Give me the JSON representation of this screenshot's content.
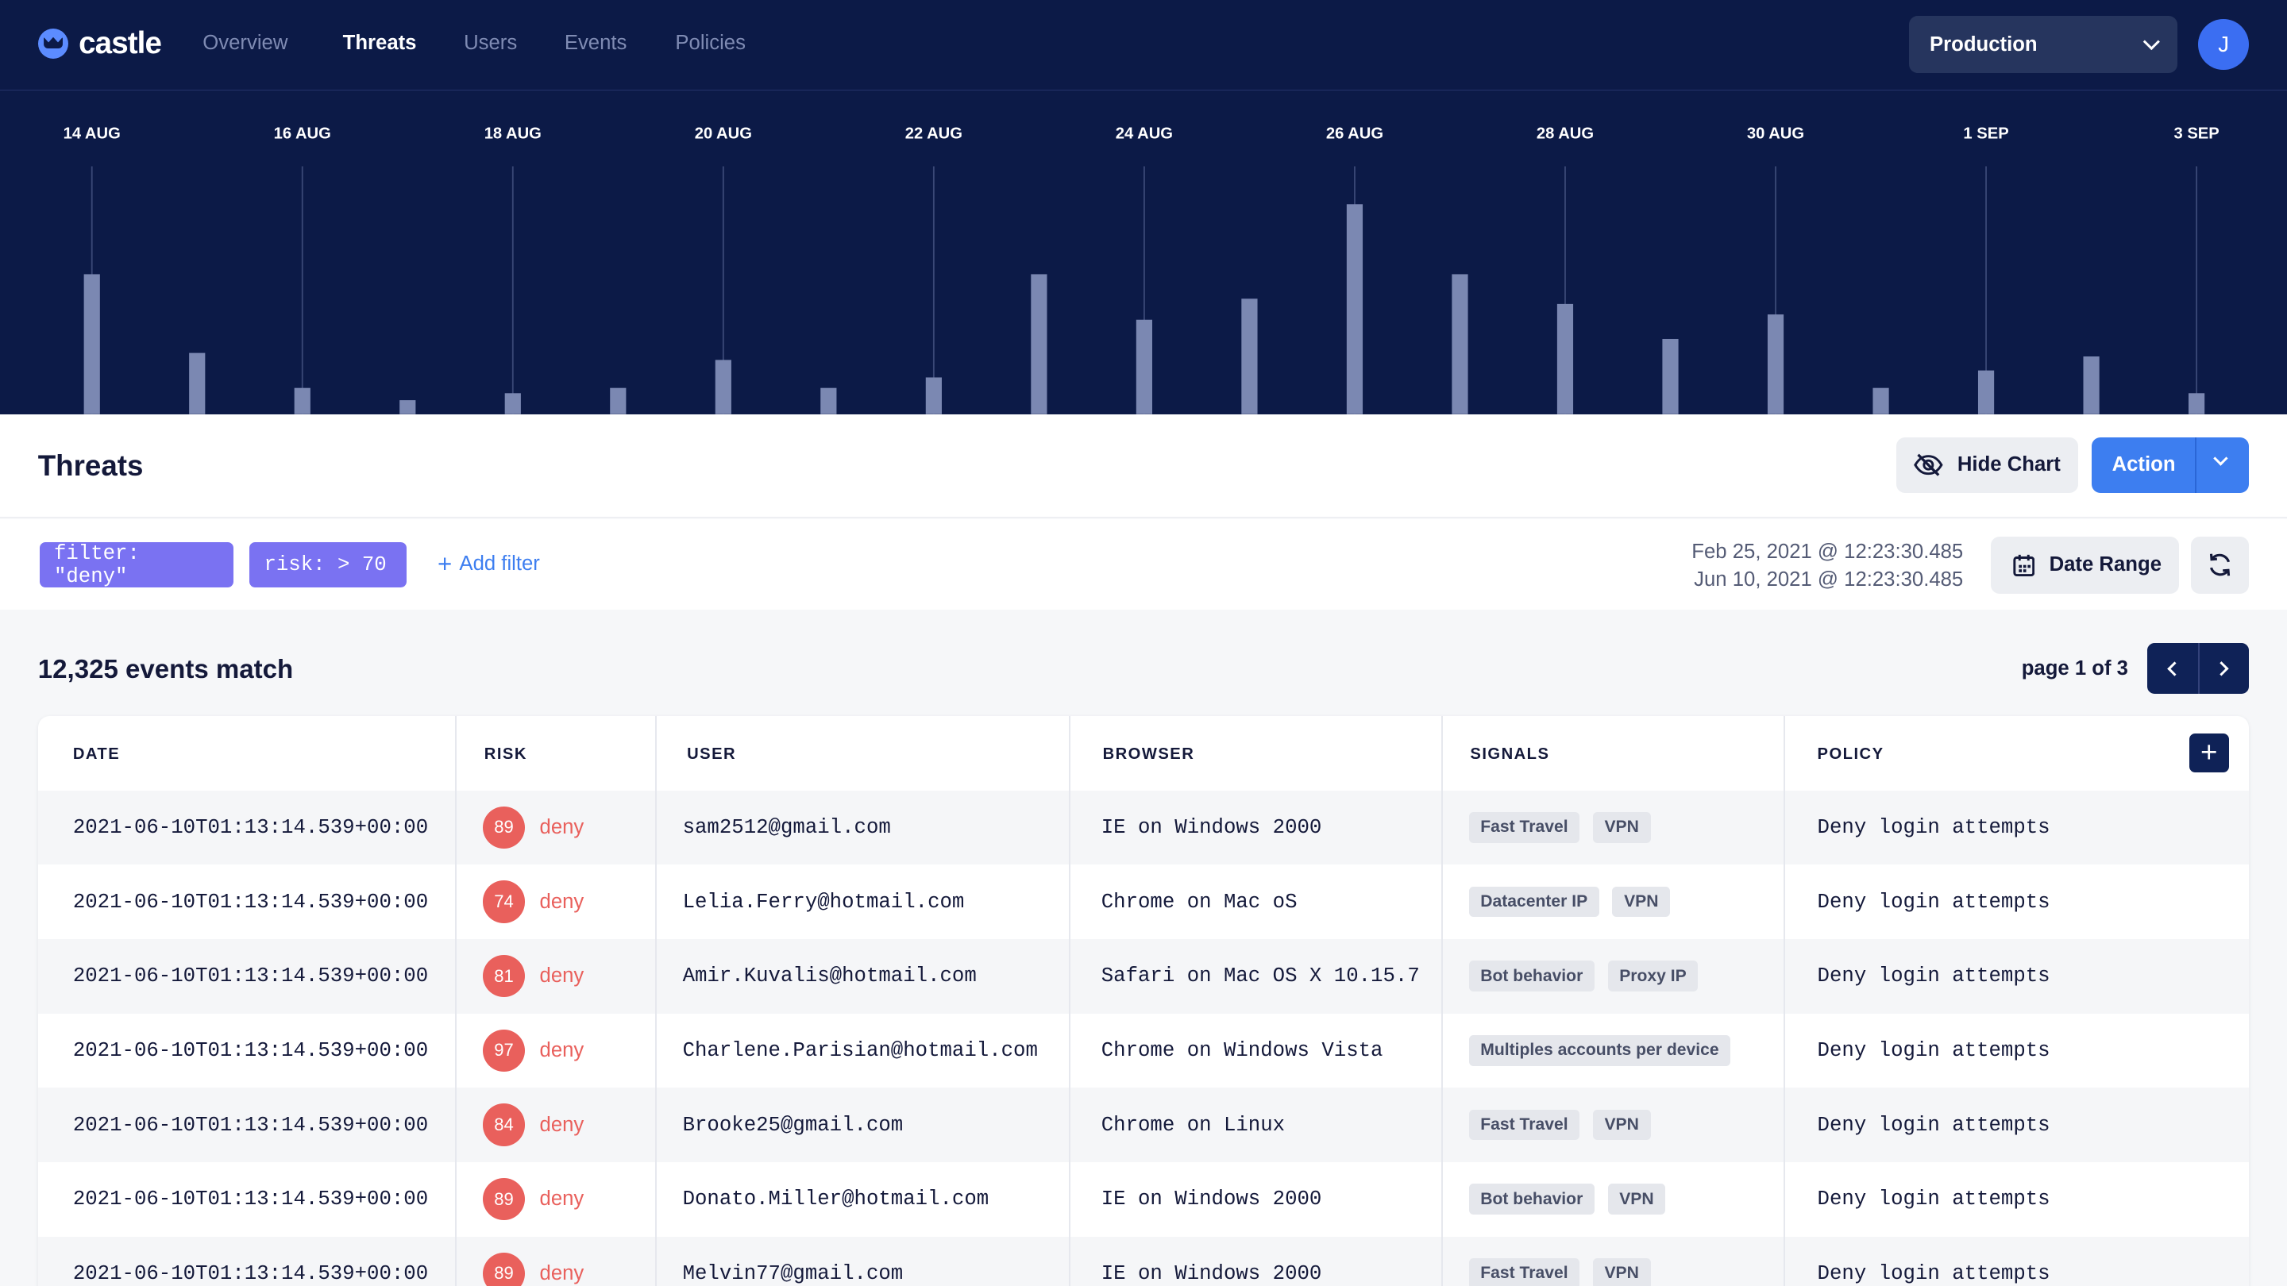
{
  "nav": {
    "logo": "castle",
    "links": [
      {
        "label": "Overview",
        "active": false
      },
      {
        "label": "Threats",
        "active": true
      },
      {
        "label": "Users",
        "active": false
      },
      {
        "label": "Events",
        "active": false
      },
      {
        "label": "Policies",
        "active": false
      }
    ],
    "environment": "Production",
    "avatar_initial": "J"
  },
  "chart_data": {
    "type": "bar",
    "tick_labels": [
      "14 AUG",
      "16 AUG",
      "18 AUG",
      "20 AUG",
      "22 AUG",
      "24 AUG",
      "26 AUG",
      "28 AUG",
      "30 AUG",
      "1 SEP",
      "3 SEP"
    ],
    "values": [
      80,
      35,
      15,
      8,
      12,
      15,
      31,
      15,
      21,
      80,
      54,
      66,
      120,
      80,
      63,
      43,
      57,
      15,
      25,
      33,
      12
    ],
    "ylim": [
      0,
      120
    ],
    "bar_color": "#7b88b2",
    "background": "#0c1a47"
  },
  "header": {
    "title": "Threats",
    "hide_chart_label": "Hide Chart",
    "action_label": "Action"
  },
  "filters": {
    "chips": [
      "filter: \"deny\"",
      "risk: > 70"
    ],
    "add_filter_label": "Add filter",
    "date_from": "Feb 25, 2021 @ 12:23:30.485",
    "date_to": "Jun 10, 2021 @ 12:23:30.485",
    "date_range_label": "Date Range"
  },
  "results": {
    "count_text": "12,325 events match",
    "page_text": "page 1 of 3"
  },
  "table": {
    "columns": [
      "DATE",
      "RISK",
      "USER",
      "BROWSER",
      "SIGNALS",
      "POLICY"
    ],
    "rows": [
      {
        "date": "2021-06-10T01:13:14.539+00:00",
        "risk": "89",
        "verdict": "deny",
        "user": "sam2512@gmail.com",
        "browser": "IE on Windows 2000",
        "signals": [
          "Fast Travel",
          "VPN"
        ],
        "policy": "Deny login attempts"
      },
      {
        "date": "2021-06-10T01:13:14.539+00:00",
        "risk": "74",
        "verdict": "deny",
        "user": "Lelia.Ferry@hotmail.com",
        "browser": "Chrome on Mac oS",
        "signals": [
          "Datacenter IP",
          "VPN"
        ],
        "policy": "Deny login attempts"
      },
      {
        "date": "2021-06-10T01:13:14.539+00:00",
        "risk": "81",
        "verdict": "deny",
        "user": "Amir.Kuvalis@hotmail.com",
        "browser": "Safari on Mac OS X 10.15.7",
        "signals": [
          "Bot behavior",
          "Proxy IP"
        ],
        "policy": "Deny login attempts"
      },
      {
        "date": "2021-06-10T01:13:14.539+00:00",
        "risk": "97",
        "verdict": "deny",
        "user": "Charlene.Parisian@hotmail.com",
        "browser": "Chrome on Windows Vista",
        "signals": [
          "Multiples accounts per device"
        ],
        "policy": "Deny login attempts"
      },
      {
        "date": "2021-06-10T01:13:14.539+00:00",
        "risk": "84",
        "verdict": "deny",
        "user": "Brooke25@gmail.com",
        "browser": "Chrome on Linux",
        "signals": [
          "Fast Travel",
          "VPN"
        ],
        "policy": "Deny login attempts"
      },
      {
        "date": "2021-06-10T01:13:14.539+00:00",
        "risk": "89",
        "verdict": "deny",
        "user": "Donato.Miller@hotmail.com",
        "browser": "IE on Windows 2000",
        "signals": [
          "Bot behavior",
          "VPN"
        ],
        "policy": "Deny login attempts"
      },
      {
        "date": "2021-06-10T01:13:14.539+00:00",
        "risk": "89",
        "verdict": "deny",
        "user": "Melvin77@gmail.com",
        "browser": "IE on Windows 2000",
        "signals": [
          "Fast Travel",
          "VPN"
        ],
        "policy": "Deny login attempts"
      }
    ]
  }
}
